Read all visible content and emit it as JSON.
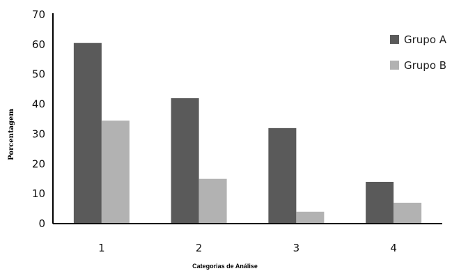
{
  "chart_data": {
    "type": "bar",
    "categories": [
      "1",
      "2",
      "3",
      "4"
    ],
    "series": [
      {
        "name": "Grupo A",
        "values": [
          60.5,
          42,
          32,
          14
        ],
        "color": "#5a5a5a"
      },
      {
        "name": "Grupo B",
        "values": [
          34.5,
          15,
          4,
          7
        ],
        "color": "#b2b2b2"
      }
    ],
    "xlabel": "Categorias  de Análise",
    "ylabel": "Porcentagem",
    "ylim": [
      0,
      70
    ],
    "yticks": [
      "0",
      "10",
      "20",
      "30",
      "40",
      "50",
      "60",
      "70"
    ],
    "grid": false,
    "legend_position": "top-right",
    "axis_color": "#000000"
  }
}
